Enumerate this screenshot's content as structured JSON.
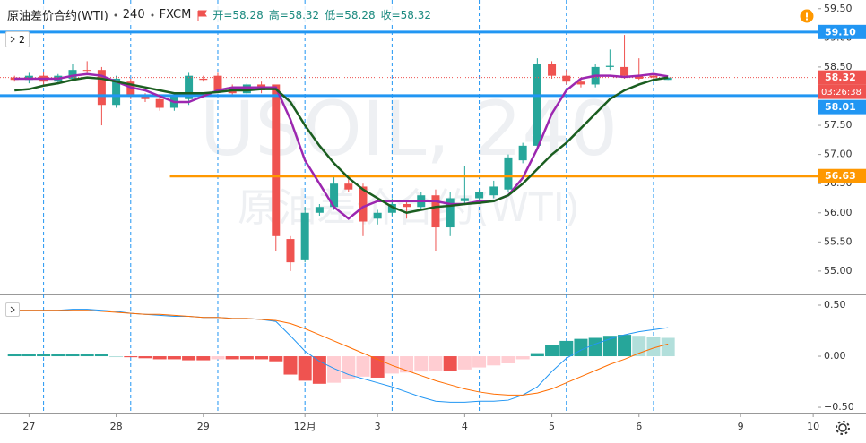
{
  "header": {
    "symbol": "原油差价合约(WTI)",
    "interval": "240",
    "source": "FXCM",
    "open": "开=58.28",
    "high": "高=58.32",
    "low": "低=58.28",
    "close": "收=58.32",
    "pane_count": "2"
  },
  "watermark": {
    "line1": "USOIL, 240",
    "line2": "原油差价合约(WTI)"
  },
  "chart_data": [
    {
      "type": "candlestick",
      "up_color": "#26a69a",
      "down_color": "#ef5350",
      "xlim": [
        -1,
        55.3
      ],
      "xticks": [
        {
          "value": 1,
          "label": "27"
        },
        {
          "value": 7,
          "label": "28"
        },
        {
          "value": 13,
          "label": "29"
        },
        {
          "value": 20,
          "label": "12月"
        },
        {
          "value": 25,
          "label": "3"
        },
        {
          "value": 31,
          "label": "4"
        },
        {
          "value": 37,
          "label": "5"
        },
        {
          "value": 43,
          "label": "6"
        },
        {
          "value": 50,
          "label": "9"
        },
        {
          "value": 55,
          "label": "10"
        }
      ],
      "session_breaks": [
        2,
        8,
        14,
        20,
        26,
        32,
        38,
        44
      ],
      "ylim": [
        54.63,
        59.65
      ],
      "yticks": [
        {
          "value": 55,
          "label": "55.00"
        },
        {
          "value": 55.5,
          "label": "55.50"
        },
        {
          "value": 56,
          "label": "56.00"
        },
        {
          "value": 56.5,
          "label": "56.50"
        },
        {
          "value": 57,
          "label": "57.00"
        },
        {
          "value": 57.5,
          "label": "57.50"
        },
        {
          "value": 58,
          "label": "58.00"
        },
        {
          "value": 58.5,
          "label": "58.50"
        },
        {
          "value": 59,
          "label": "59.00"
        },
        {
          "value": 59.5,
          "label": "59.50"
        }
      ],
      "candles": [
        {
          "o": 58.32,
          "h": 58.35,
          "l": 58.25,
          "c": 58.28
        },
        {
          "o": 58.28,
          "h": 58.4,
          "l": 58.22,
          "c": 58.35
        },
        {
          "o": 58.35,
          "h": 58.42,
          "l": 58.2,
          "c": 58.25
        },
        {
          "o": 58.25,
          "h": 58.38,
          "l": 58.2,
          "c": 58.35
        },
        {
          "o": 58.3,
          "h": 58.55,
          "l": 58.28,
          "c": 58.45
        },
        {
          "o": 58.45,
          "h": 58.6,
          "l": 58.4,
          "c": 58.44
        },
        {
          "o": 58.45,
          "h": 58.5,
          "l": 57.5,
          "c": 57.85
        },
        {
          "o": 57.85,
          "h": 58.35,
          "l": 57.8,
          "c": 58.3
        },
        {
          "o": 58.25,
          "h": 58.3,
          "l": 57.95,
          "c": 58.0
        },
        {
          "o": 58.0,
          "h": 58.05,
          "l": 57.9,
          "c": 57.95
        },
        {
          "o": 57.95,
          "h": 58.0,
          "l": 57.75,
          "c": 57.8
        },
        {
          "o": 57.8,
          "h": 58.02,
          "l": 57.75,
          "c": 58.0
        },
        {
          "o": 57.95,
          "h": 58.4,
          "l": 57.85,
          "c": 58.35
        },
        {
          "o": 58.3,
          "h": 58.35,
          "l": 58.25,
          "c": 58.28
        },
        {
          "o": 58.35,
          "h": 58.4,
          "l": 58.05,
          "c": 58.1
        },
        {
          "o": 58.15,
          "h": 58.2,
          "l": 58.0,
          "c": 58.05
        },
        {
          "o": 58.05,
          "h": 58.22,
          "l": 58.0,
          "c": 58.2
        },
        {
          "o": 58.2,
          "h": 58.25,
          "l": 58.05,
          "c": 58.1
        },
        {
          "o": 58.2,
          "h": 58.2,
          "l": 55.35,
          "c": 55.6
        },
        {
          "o": 55.55,
          "h": 55.6,
          "l": 55.0,
          "c": 55.15
        },
        {
          "o": 55.2,
          "h": 56.1,
          "l": 55.15,
          "c": 56.0
        },
        {
          "o": 56.0,
          "h": 56.15,
          "l": 55.95,
          "c": 56.1
        },
        {
          "o": 56.1,
          "h": 56.65,
          "l": 56.05,
          "c": 56.5
        },
        {
          "o": 56.5,
          "h": 56.6,
          "l": 56.35,
          "c": 56.4
        },
        {
          "o": 56.45,
          "h": 56.5,
          "l": 55.6,
          "c": 55.85
        },
        {
          "o": 55.9,
          "h": 56.05,
          "l": 55.8,
          "c": 56.0
        },
        {
          "o": 56.0,
          "h": 56.25,
          "l": 55.95,
          "c": 56.15
        },
        {
          "o": 56.15,
          "h": 56.2,
          "l": 55.9,
          "c": 56.1
        },
        {
          "o": 56.1,
          "h": 56.35,
          "l": 56.05,
          "c": 56.3
        },
        {
          "o": 56.3,
          "h": 56.4,
          "l": 55.35,
          "c": 55.75
        },
        {
          "o": 55.75,
          "h": 56.35,
          "l": 55.6,
          "c": 56.25
        },
        {
          "o": 56.2,
          "h": 56.8,
          "l": 56.15,
          "c": 56.25
        },
        {
          "o": 56.25,
          "h": 56.4,
          "l": 56.2,
          "c": 56.35
        },
        {
          "o": 56.3,
          "h": 56.55,
          "l": 56.25,
          "c": 56.45
        },
        {
          "o": 56.4,
          "h": 57.0,
          "l": 56.35,
          "c": 56.95
        },
        {
          "o": 56.9,
          "h": 57.2,
          "l": 56.85,
          "c": 57.15
        },
        {
          "o": 57.15,
          "h": 58.65,
          "l": 57.1,
          "c": 58.55
        },
        {
          "o": 58.55,
          "h": 58.6,
          "l": 58.3,
          "c": 58.35
        },
        {
          "o": 58.35,
          "h": 58.45,
          "l": 58.2,
          "c": 58.25
        },
        {
          "o": 58.25,
          "h": 58.3,
          "l": 58.15,
          "c": 58.2
        },
        {
          "o": 58.2,
          "h": 58.55,
          "l": 58.15,
          "c": 58.5
        },
        {
          "o": 58.5,
          "h": 58.8,
          "l": 58.45,
          "c": 58.52
        },
        {
          "o": 58.5,
          "h": 59.05,
          "l": 58.3,
          "c": 58.35
        },
        {
          "o": 58.35,
          "h": 58.65,
          "l": 58.28,
          "c": 58.3
        },
        {
          "o": 58.35,
          "h": 58.4,
          "l": 58.28,
          "c": 58.32
        },
        {
          "o": 58.28,
          "h": 58.32,
          "l": 58.28,
          "c": 58.32
        }
      ],
      "lines": [
        {
          "color": "#9c27b0",
          "values": [
            58.3,
            58.3,
            58.3,
            58.3,
            58.35,
            58.38,
            58.35,
            58.25,
            58.15,
            58.1,
            58.0,
            57.9,
            57.9,
            58.0,
            58.1,
            58.15,
            58.15,
            58.15,
            58.15,
            57.6,
            56.9,
            56.5,
            56.1,
            55.9,
            56.1,
            56.2,
            56.2,
            56.2,
            56.2,
            56.2,
            56.15,
            56.15,
            56.2,
            56.2,
            56.3,
            56.6,
            57.1,
            57.7,
            58.1,
            58.3,
            58.35,
            58.35,
            58.33,
            58.35,
            58.38,
            58.34
          ]
        },
        {
          "color": "#1b5e20",
          "values": [
            58.1,
            58.12,
            58.18,
            58.22,
            58.28,
            58.32,
            58.3,
            58.25,
            58.2,
            58.15,
            58.1,
            58.05,
            58.05,
            58.05,
            58.07,
            58.1,
            58.1,
            58.12,
            58.12,
            57.9,
            57.5,
            57.15,
            56.85,
            56.6,
            56.4,
            56.25,
            56.1,
            56.0,
            56.05,
            56.1,
            56.12,
            56.15,
            56.17,
            56.2,
            56.3,
            56.5,
            56.75,
            57.0,
            57.2,
            57.45,
            57.7,
            57.95,
            58.1,
            58.2,
            58.28,
            58.32
          ]
        }
      ],
      "levels": [
        {
          "value": 59.1,
          "label": "59.10",
          "color": "#2196f3"
        },
        {
          "value": 58.01,
          "label": "58.01",
          "color": "#2196f3"
        },
        {
          "value": 56.63,
          "label": "56.63",
          "color": "#ff9800",
          "x_start": 10.7
        }
      ],
      "last_price": {
        "value": 58.32,
        "label": "58.32",
        "countdown": "03:26:38",
        "color": "#ef5350"
      }
    },
    {
      "type": "macd",
      "histogram_colors": [
        "#26a69a",
        "#b2dfdb",
        "#ffcdd2",
        "#ef5350"
      ],
      "ylim": [
        -0.561,
        0.579
      ],
      "yticks": [
        {
          "value": 0.5,
          "label": "0.50"
        },
        {
          "value": 0,
          "label": "0.00"
        },
        {
          "value": -0.5,
          "label": "−0.50"
        }
      ],
      "histogram": [
        0.02,
        0.02,
        0.02,
        0.02,
        0.02,
        0.02,
        0.02,
        0,
        -0.01,
        -0.02,
        -0.03,
        -0.03,
        -0.04,
        -0.04,
        -0.03,
        -0.03,
        -0.03,
        -0.03,
        -0.05,
        -0.18,
        -0.24,
        -0.27,
        -0.26,
        -0.22,
        -0.2,
        -0.21,
        -0.17,
        -0.16,
        -0.15,
        -0.14,
        -0.14,
        -0.13,
        -0.11,
        -0.09,
        -0.07,
        -0.03,
        0.03,
        0.11,
        0.15,
        0.17,
        0.18,
        0.2,
        0.21,
        0.2,
        0.19,
        0.18
      ],
      "lines": [
        {
          "color": "#2196f3",
          "values": [
            0.45,
            0.45,
            0.45,
            0.45,
            0.46,
            0.46,
            0.45,
            0.44,
            0.42,
            0.41,
            0.4,
            0.39,
            0.39,
            0.38,
            0.38,
            0.37,
            0.37,
            0.36,
            0.34,
            0.2,
            0.05,
            -0.05,
            -0.12,
            -0.18,
            -0.22,
            -0.26,
            -0.3,
            -0.35,
            -0.4,
            -0.44,
            -0.45,
            -0.45,
            -0.44,
            -0.44,
            -0.43,
            -0.38,
            -0.3,
            -0.15,
            -0.02,
            0.06,
            0.12,
            0.17,
            0.21,
            0.24,
            0.26,
            0.28
          ]
        },
        {
          "color": "#ff6d00",
          "values": [
            0.45,
            0.45,
            0.45,
            0.45,
            0.45,
            0.45,
            0.44,
            0.43,
            0.42,
            0.41,
            0.41,
            0.4,
            0.39,
            0.38,
            0.38,
            0.37,
            0.37,
            0.36,
            0.35,
            0.32,
            0.27,
            0.21,
            0.15,
            0.09,
            0.03,
            -0.03,
            -0.09,
            -0.14,
            -0.19,
            -0.24,
            -0.28,
            -0.32,
            -0.35,
            -0.37,
            -0.38,
            -0.38,
            -0.36,
            -0.32,
            -0.26,
            -0.2,
            -0.14,
            -0.08,
            -0.03,
            0.03,
            0.08,
            0.12
          ]
        }
      ]
    }
  ]
}
